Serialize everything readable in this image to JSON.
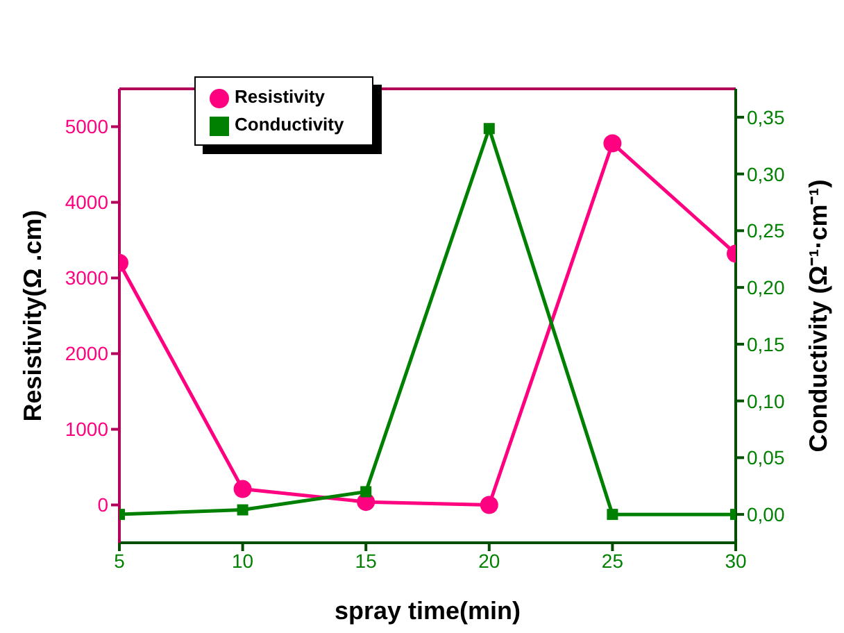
{
  "chart_data": {
    "type": "line",
    "xlabel": "spray time(min)",
    "ylabel": "Resistivity(Ω .cm)",
    "y2label": "Conductivity (Ω⁻¹·cm⁻¹)",
    "x": [
      5,
      10,
      15,
      20,
      25,
      30
    ],
    "series": [
      {
        "name": "Resistivity",
        "color": "#ff0080",
        "marker": "circle",
        "values": [
          3200,
          210,
          40,
          0,
          4780,
          3320
        ]
      },
      {
        "name": "Conductivity",
        "color": "#008000",
        "marker": "square",
        "axis": "y2",
        "values": [
          0,
          0.004,
          0.02,
          0.34,
          0,
          0
        ]
      }
    ],
    "xlim": [
      5,
      30
    ],
    "xticks": [
      5,
      10,
      15,
      20,
      25,
      30
    ],
    "ylim": [
      -500,
      5500
    ],
    "yticks": [
      0,
      1000,
      2000,
      3000,
      4000,
      5000
    ],
    "y2lim": [
      -0.025,
      0.375
    ],
    "y2ticks": [
      {
        "value": 0,
        "label": "0,00"
      },
      {
        "value": 0.05,
        "label": "0,05"
      },
      {
        "value": 0.1,
        "label": "0,10"
      },
      {
        "value": 0.15,
        "label": "0,15"
      },
      {
        "value": 0.2,
        "label": "0,20"
      },
      {
        "value": 0.25,
        "label": "0,25"
      },
      {
        "value": 0.3,
        "label": "0,30"
      },
      {
        "value": 0.35,
        "label": "0,35"
      }
    ],
    "grid": false,
    "legend": "top left"
  }
}
